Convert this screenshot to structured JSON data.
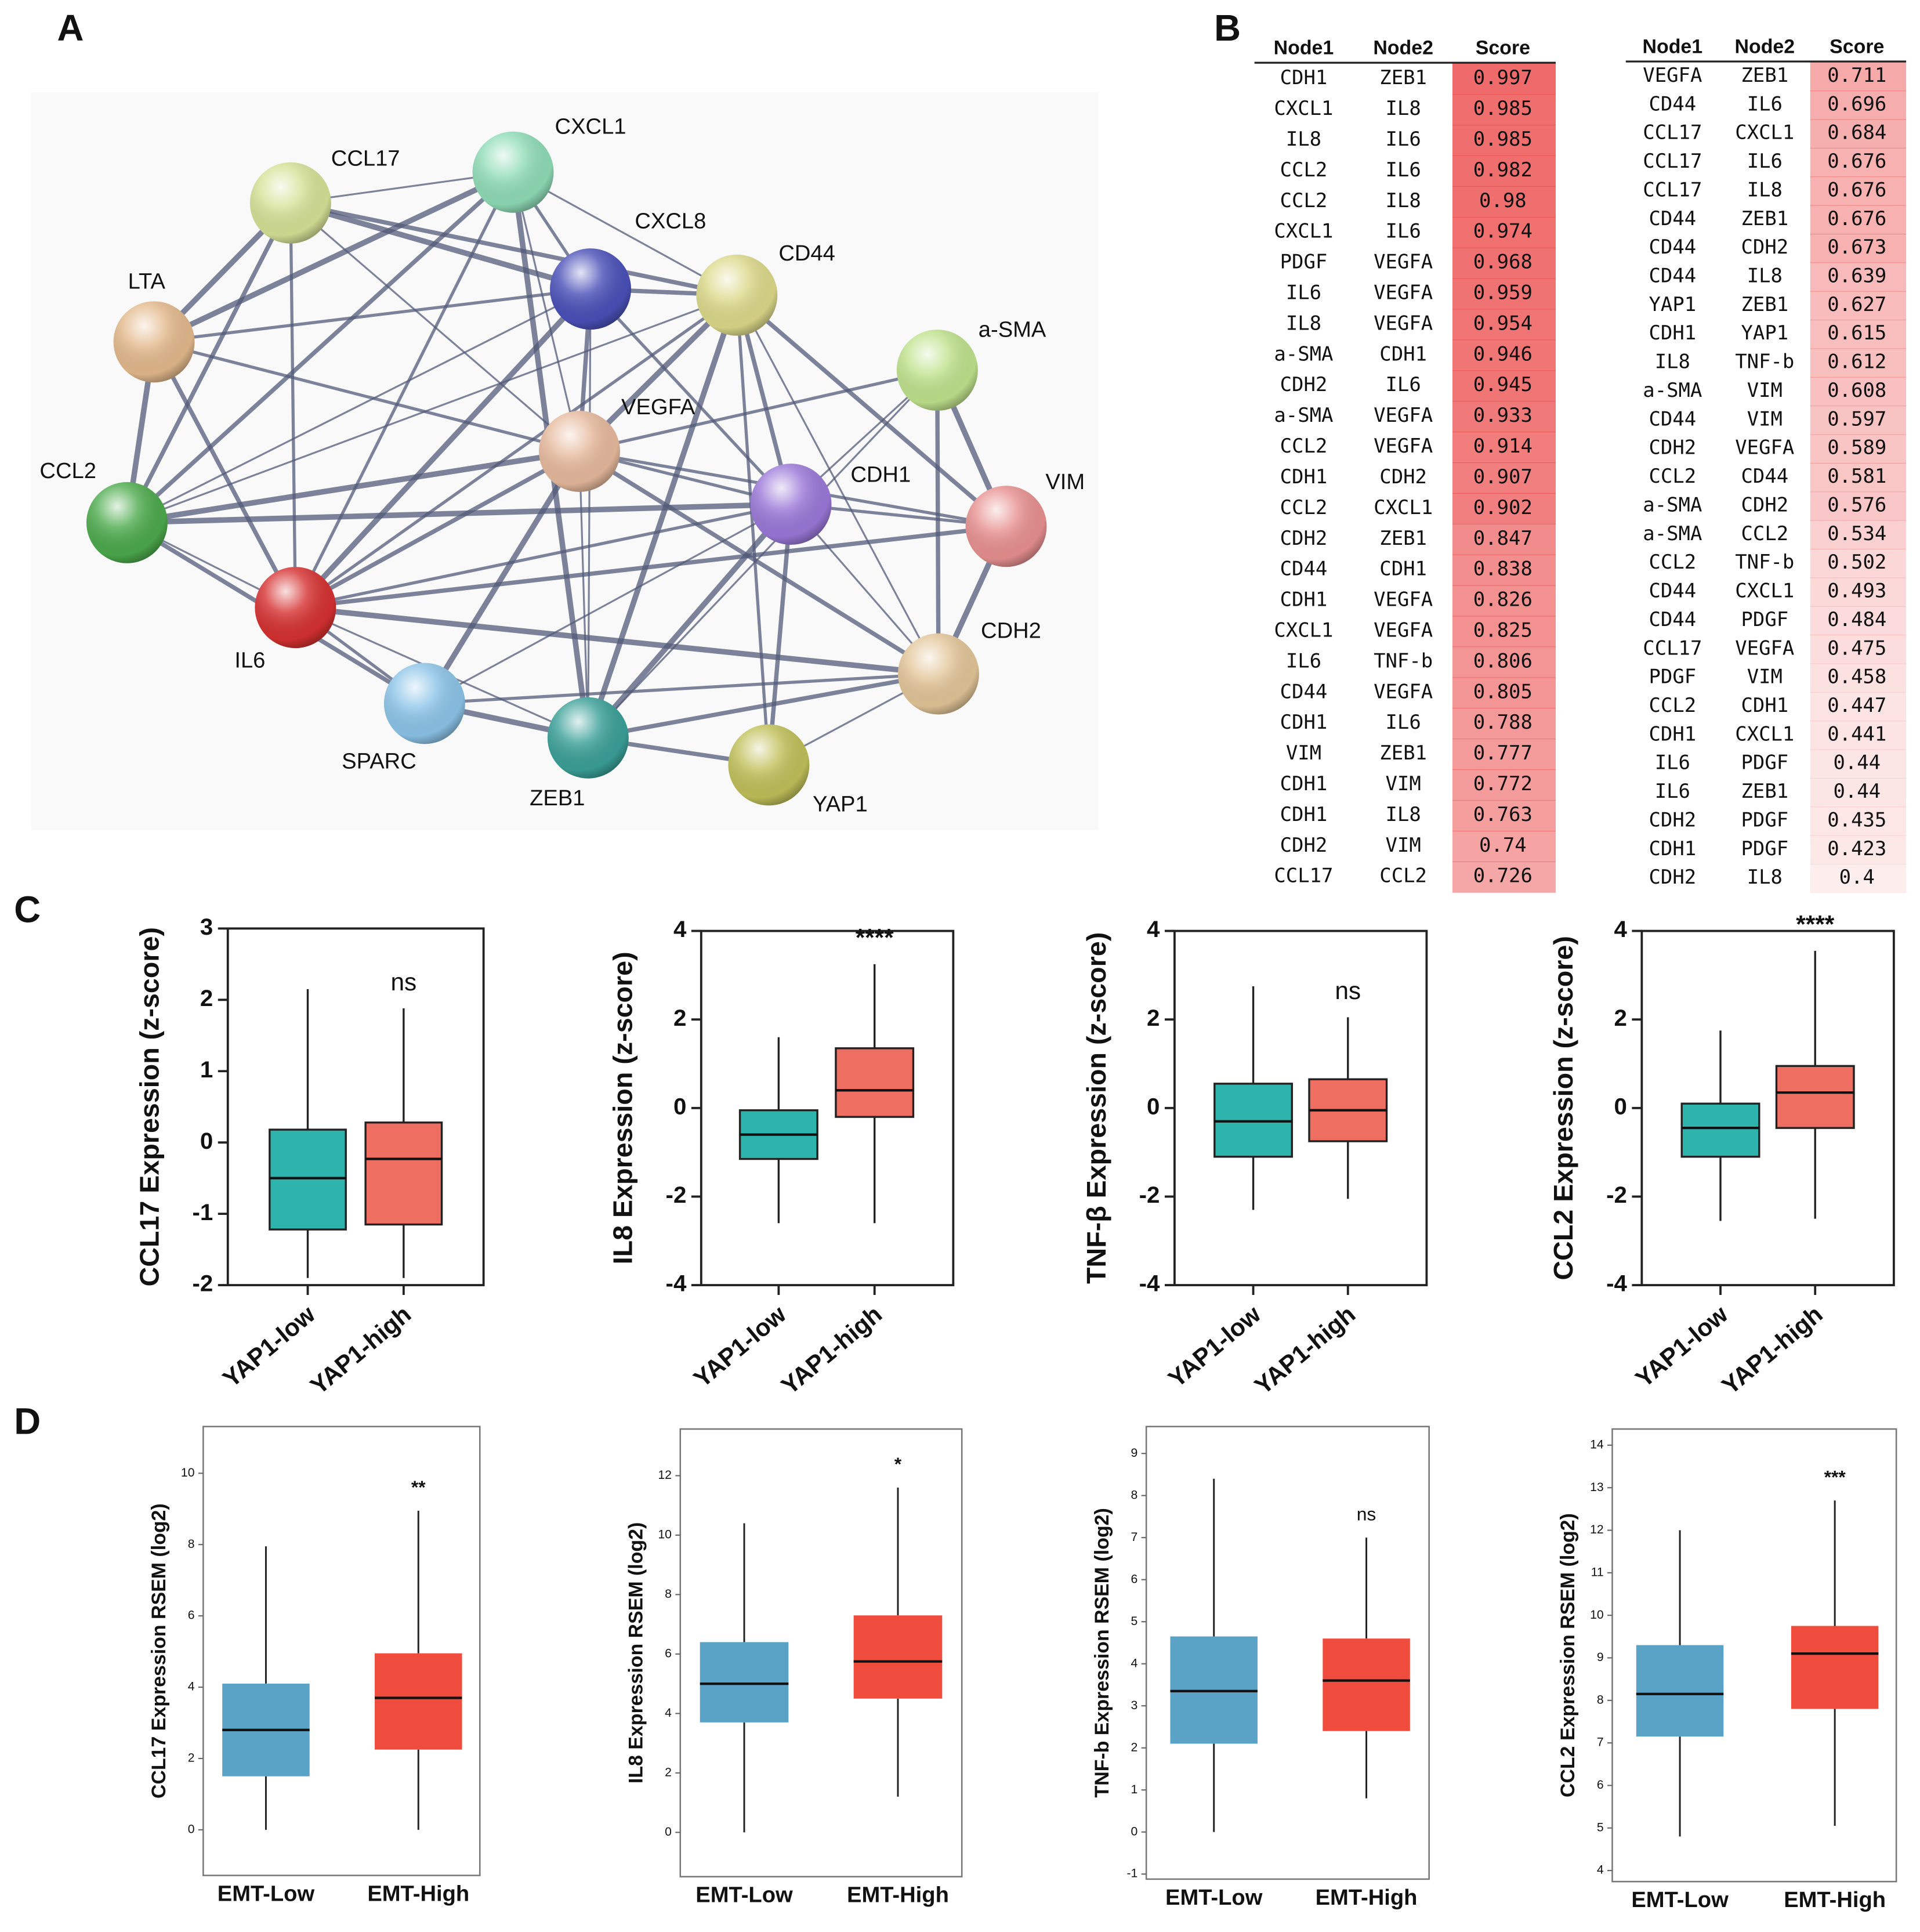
{
  "panel_labels": [
    "A",
    "B",
    "C",
    "D"
  ],
  "network": {
    "nodes": [
      {
        "label": "CCL17",
        "color": "#d5e196"
      },
      {
        "label": "CXCL1",
        "color": "#8fdcb6"
      },
      {
        "label": "CXCL8",
        "color": "#4a50b8"
      },
      {
        "label": "CD44",
        "color": "#dcd98a"
      },
      {
        "label": "LTA",
        "color": "#e3b98c"
      },
      {
        "label": "a-SMA",
        "color": "#bfe28c"
      },
      {
        "label": "VEGFA",
        "color": "#e6b99c"
      },
      {
        "label": "CCL2",
        "color": "#4caa4c"
      },
      {
        "label": "CDH1",
        "color": "#9a78d8"
      },
      {
        "label": "VIM",
        "color": "#e89090"
      },
      {
        "label": "IL6",
        "color": "#d63030"
      },
      {
        "label": "CDH2",
        "color": "#e2c598"
      },
      {
        "label": "SPARC",
        "color": "#8cc4e8"
      },
      {
        "label": "ZEB1",
        "color": "#3aa098"
      },
      {
        "label": "YAP1",
        "color": "#c0c05a"
      }
    ]
  },
  "gene_colors": {
    "CDH1": "#1f6fc5",
    "CDH2": "#1f6fc5",
    "ZEB1": "#1f6fc5",
    "VIM": "#1f6fc5",
    "CXCL1": "#1f9a1f",
    "IL8": "#1f9a1f",
    "IL6": "#1f9a1f",
    "CCL2": "#1f9a1f",
    "PDGF": "#1f9a1f",
    "VEGFA": "#1f9a1f",
    "CCL17": "#1f9a1f",
    "TNF-b": "#1f9a1f",
    "a-SMA": "#c81e1e",
    "CD44": "#c81e1e",
    "YAP1": "#c81e1e"
  },
  "score_color": "#ec5050",
  "tables": [
    {
      "headers": [
        "Node1",
        "Node2",
        "Score"
      ],
      "rows": [
        [
          "CDH1",
          "ZEB1",
          0.997
        ],
        [
          "CXCL1",
          "IL8",
          0.985
        ],
        [
          "IL8",
          "IL6",
          0.985
        ],
        [
          "CCL2",
          "IL6",
          0.982
        ],
        [
          "CCL2",
          "IL8",
          0.98
        ],
        [
          "CXCL1",
          "IL6",
          0.974
        ],
        [
          "PDGF",
          "VEGFA",
          0.968
        ],
        [
          "IL6",
          "VEGFA",
          0.959
        ],
        [
          "IL8",
          "VEGFA",
          0.954
        ],
        [
          "a-SMA",
          "CDH1",
          0.946
        ],
        [
          "CDH2",
          "IL6",
          0.945
        ],
        [
          "a-SMA",
          "VEGFA",
          0.933
        ],
        [
          "CCL2",
          "VEGFA",
          0.914
        ],
        [
          "CDH1",
          "CDH2",
          0.907
        ],
        [
          "CCL2",
          "CXCL1",
          0.902
        ],
        [
          "CDH2",
          "ZEB1",
          0.847
        ],
        [
          "CD44",
          "CDH1",
          0.838
        ],
        [
          "CDH1",
          "VEGFA",
          0.826
        ],
        [
          "CXCL1",
          "VEGFA",
          0.825
        ],
        [
          "IL6",
          "TNF-b",
          0.806
        ],
        [
          "CD44",
          "VEGFA",
          0.805
        ],
        [
          "CDH1",
          "IL6",
          0.788
        ],
        [
          "VIM",
          "ZEB1",
          0.777
        ],
        [
          "CDH1",
          "VIM",
          0.772
        ],
        [
          "CDH1",
          "IL8",
          0.763
        ],
        [
          "CDH2",
          "VIM",
          0.74
        ],
        [
          "CCL17",
          "CCL2",
          0.726
        ]
      ]
    },
    {
      "headers": [
        "Node1",
        "Node2",
        "Score"
      ],
      "rows": [
        [
          "VEGFA",
          "ZEB1",
          0.711
        ],
        [
          "CD44",
          "IL6",
          0.696
        ],
        [
          "CCL17",
          "CXCL1",
          0.684
        ],
        [
          "CCL17",
          "IL6",
          0.676
        ],
        [
          "CCL17",
          "IL8",
          0.676
        ],
        [
          "CD44",
          "ZEB1",
          0.676
        ],
        [
          "CD44",
          "CDH2",
          0.673
        ],
        [
          "CD44",
          "IL8",
          0.639
        ],
        [
          "YAP1",
          "ZEB1",
          0.627
        ],
        [
          "CDH1",
          "YAP1",
          0.615
        ],
        [
          "IL8",
          "TNF-b",
          0.612
        ],
        [
          "a-SMA",
          "VIM",
          0.608
        ],
        [
          "CD44",
          "VIM",
          0.597
        ],
        [
          "CDH2",
          "VEGFA",
          0.589
        ],
        [
          "CCL2",
          "CD44",
          0.581
        ],
        [
          "a-SMA",
          "CDH2",
          0.576
        ],
        [
          "a-SMA",
          "CCL2",
          0.534
        ],
        [
          "CCL2",
          "TNF-b",
          0.502
        ],
        [
          "CD44",
          "CXCL1",
          0.493
        ],
        [
          "CD44",
          "PDGF",
          0.484
        ],
        [
          "CCL17",
          "VEGFA",
          0.475
        ],
        [
          "PDGF",
          "VIM",
          0.458
        ],
        [
          "CCL2",
          "CDH1",
          0.447
        ],
        [
          "CDH1",
          "CXCL1",
          0.441
        ],
        [
          "IL6",
          "PDGF",
          0.44
        ],
        [
          "IL6",
          "ZEB1",
          0.44
        ],
        [
          "CDH2",
          "PDGF",
          0.435
        ],
        [
          "CDH1",
          "PDGF",
          0.423
        ],
        [
          "CDH2",
          "IL8",
          0.4
        ]
      ]
    }
  ],
  "chart_data": [
    {
      "type": "box",
      "ylabel": "CCL17 Expression (z-score)",
      "categories": [
        "YAP1-low",
        "YAP1-high"
      ],
      "ylim": [
        -2,
        3
      ],
      "yticks": [
        -2,
        -1,
        0,
        1,
        2,
        3
      ],
      "boxes": [
        {
          "whisker_low": -1.9,
          "q1": -1.22,
          "median": -0.5,
          "q3": 0.18,
          "whisker_high": 2.15,
          "color": "#2fb3ad"
        },
        {
          "whisker_low": -1.9,
          "q1": -1.15,
          "median": -0.23,
          "q3": 0.28,
          "whisker_high": 1.88,
          "color": "#ef6e62"
        }
      ],
      "annotation": "ns"
    },
    {
      "type": "box",
      "ylabel": "IL8 Expression (z-score)",
      "categories": [
        "YAP1-low",
        "YAP1-high"
      ],
      "ylim": [
        -4,
        4
      ],
      "yticks": [
        -4,
        -2,
        0,
        2,
        4
      ],
      "boxes": [
        {
          "whisker_low": -2.6,
          "q1": -1.15,
          "median": -0.6,
          "q3": -0.05,
          "whisker_high": 1.6,
          "color": "#2fb3ad"
        },
        {
          "whisker_low": -2.6,
          "q1": -0.2,
          "median": 0.4,
          "q3": 1.35,
          "whisker_high": 3.25,
          "color": "#ef6e62"
        }
      ],
      "annotation": "****"
    },
    {
      "type": "box",
      "ylabel": "TNF-β Expression (z-score)",
      "categories": [
        "YAP1-low",
        "YAP1-high"
      ],
      "ylim": [
        -4,
        4
      ],
      "yticks": [
        -4,
        -2,
        0,
        2,
        4
      ],
      "boxes": [
        {
          "whisker_low": -2.3,
          "q1": -1.1,
          "median": -0.3,
          "q3": 0.55,
          "whisker_high": 2.75,
          "color": "#2fb3ad"
        },
        {
          "whisker_low": -2.05,
          "q1": -0.75,
          "median": -0.05,
          "q3": 0.65,
          "whisker_high": 2.05,
          "color": "#ef6e62"
        }
      ],
      "annotation": "ns"
    },
    {
      "type": "box",
      "ylabel": "CCL2 Expression (z-score)",
      "categories": [
        "YAP1-low",
        "YAP1-high"
      ],
      "ylim": [
        -4,
        4
      ],
      "yticks": [
        -4,
        -2,
        0,
        2,
        4
      ],
      "boxes": [
        {
          "whisker_low": -2.55,
          "q1": -1.1,
          "median": -0.45,
          "q3": 0.1,
          "whisker_high": 1.75,
          "color": "#2fb3ad"
        },
        {
          "whisker_low": -2.5,
          "q1": -0.45,
          "median": 0.35,
          "q3": 0.95,
          "whisker_high": 3.55,
          "color": "#ef6e62"
        }
      ],
      "annotation": "****"
    },
    {
      "type": "box",
      "ylabel": "CCL17 Expression RSEM (log2)",
      "categories": [
        "EMT-Low",
        "EMT-High"
      ],
      "ylim": [
        -1.28,
        11.31
      ],
      "yticks": [
        0,
        2,
        4,
        6,
        8,
        10
      ],
      "boxes": [
        {
          "whisker_low": 0,
          "q1": 1.5,
          "median": 2.8,
          "q3": 4.1,
          "whisker_high": 7.95,
          "color": "#5ba3c6"
        },
        {
          "whisker_low": 0,
          "q1": 2.25,
          "median": 3.7,
          "q3": 4.95,
          "whisker_high": 8.95,
          "color": "#f04c3e"
        }
      ],
      "annotation": "**"
    },
    {
      "type": "box",
      "ylabel": "IL8 Expression RSEM (log2)",
      "categories": [
        "EMT-Low",
        "EMT-High"
      ],
      "ylim": [
        -1.49,
        13.57
      ],
      "yticks": [
        0,
        2,
        4,
        6,
        8,
        10,
        12
      ],
      "boxes": [
        {
          "whisker_low": 0,
          "q1": 3.7,
          "median": 5.0,
          "q3": 6.4,
          "whisker_high": 10.4,
          "color": "#5ba3c6"
        },
        {
          "whisker_low": 1.2,
          "q1": 4.5,
          "median": 5.75,
          "q3": 7.3,
          "whisker_high": 11.6,
          "color": "#f04c3e"
        }
      ],
      "annotation": "*"
    },
    {
      "type": "box",
      "ylabel": "TNF-b Expression RSEM (log2)",
      "categories": [
        "EMT-Low",
        "EMT-High"
      ],
      "ylim": [
        -1.12,
        9.64
      ],
      "yticks": [
        -1,
        0,
        1,
        2,
        3,
        4,
        5,
        6,
        7,
        8,
        9
      ],
      "boxes": [
        {
          "whisker_low": 0,
          "q1": 2.1,
          "median": 3.35,
          "q3": 4.65,
          "whisker_high": 8.4,
          "color": "#5ba3c6"
        },
        {
          "whisker_low": 0.8,
          "q1": 2.4,
          "median": 3.6,
          "q3": 4.6,
          "whisker_high": 7.0,
          "color": "#f04c3e"
        }
      ],
      "annotation": "ns"
    },
    {
      "type": "box",
      "ylabel": "CCL2 Expression RSEM (log2)",
      "categories": [
        "EMT-Low",
        "EMT-High"
      ],
      "ylim": [
        3.74,
        14.38
      ],
      "yticks": [
        4,
        5,
        6,
        7,
        8,
        9,
        10,
        11,
        12,
        13,
        14
      ],
      "boxes": [
        {
          "whisker_low": 4.8,
          "q1": 7.15,
          "median": 8.15,
          "q3": 9.3,
          "whisker_high": 12.0,
          "color": "#5ba3c6"
        },
        {
          "whisker_low": 5.05,
          "q1": 7.8,
          "median": 9.1,
          "q3": 9.75,
          "whisker_high": 12.7,
          "color": "#f04c3e"
        }
      ],
      "annotation": "***"
    }
  ]
}
